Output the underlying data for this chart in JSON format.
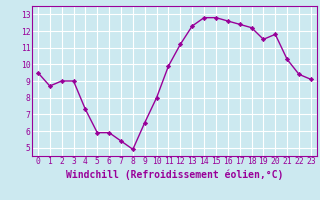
{
  "x": [
    0,
    1,
    2,
    3,
    4,
    5,
    6,
    7,
    8,
    9,
    10,
    11,
    12,
    13,
    14,
    15,
    16,
    17,
    18,
    19,
    20,
    21,
    22,
    23
  ],
  "y": [
    9.5,
    8.7,
    9.0,
    9.0,
    7.3,
    5.9,
    5.9,
    5.4,
    4.9,
    6.5,
    8.0,
    9.9,
    11.2,
    12.3,
    12.8,
    12.8,
    12.6,
    12.4,
    12.2,
    11.5,
    11.8,
    10.3,
    9.4,
    9.1
  ],
  "line_color": "#990099",
  "marker": "D",
  "markersize": 2.2,
  "linewidth": 1.0,
  "xlabel": "Windchill (Refroidissement éolien,°C)",
  "xlim": [
    -0.5,
    23.5
  ],
  "ylim": [
    4.5,
    13.5
  ],
  "yticks": [
    5,
    6,
    7,
    8,
    9,
    10,
    11,
    12,
    13
  ],
  "xticks": [
    0,
    1,
    2,
    3,
    4,
    5,
    6,
    7,
    8,
    9,
    10,
    11,
    12,
    13,
    14,
    15,
    16,
    17,
    18,
    19,
    20,
    21,
    22,
    23
  ],
  "background_color": "#cce9f0",
  "grid_color": "#ffffff",
  "tick_label_fontsize": 5.8,
  "xlabel_fontsize": 7.0,
  "spine_color": "#990099"
}
